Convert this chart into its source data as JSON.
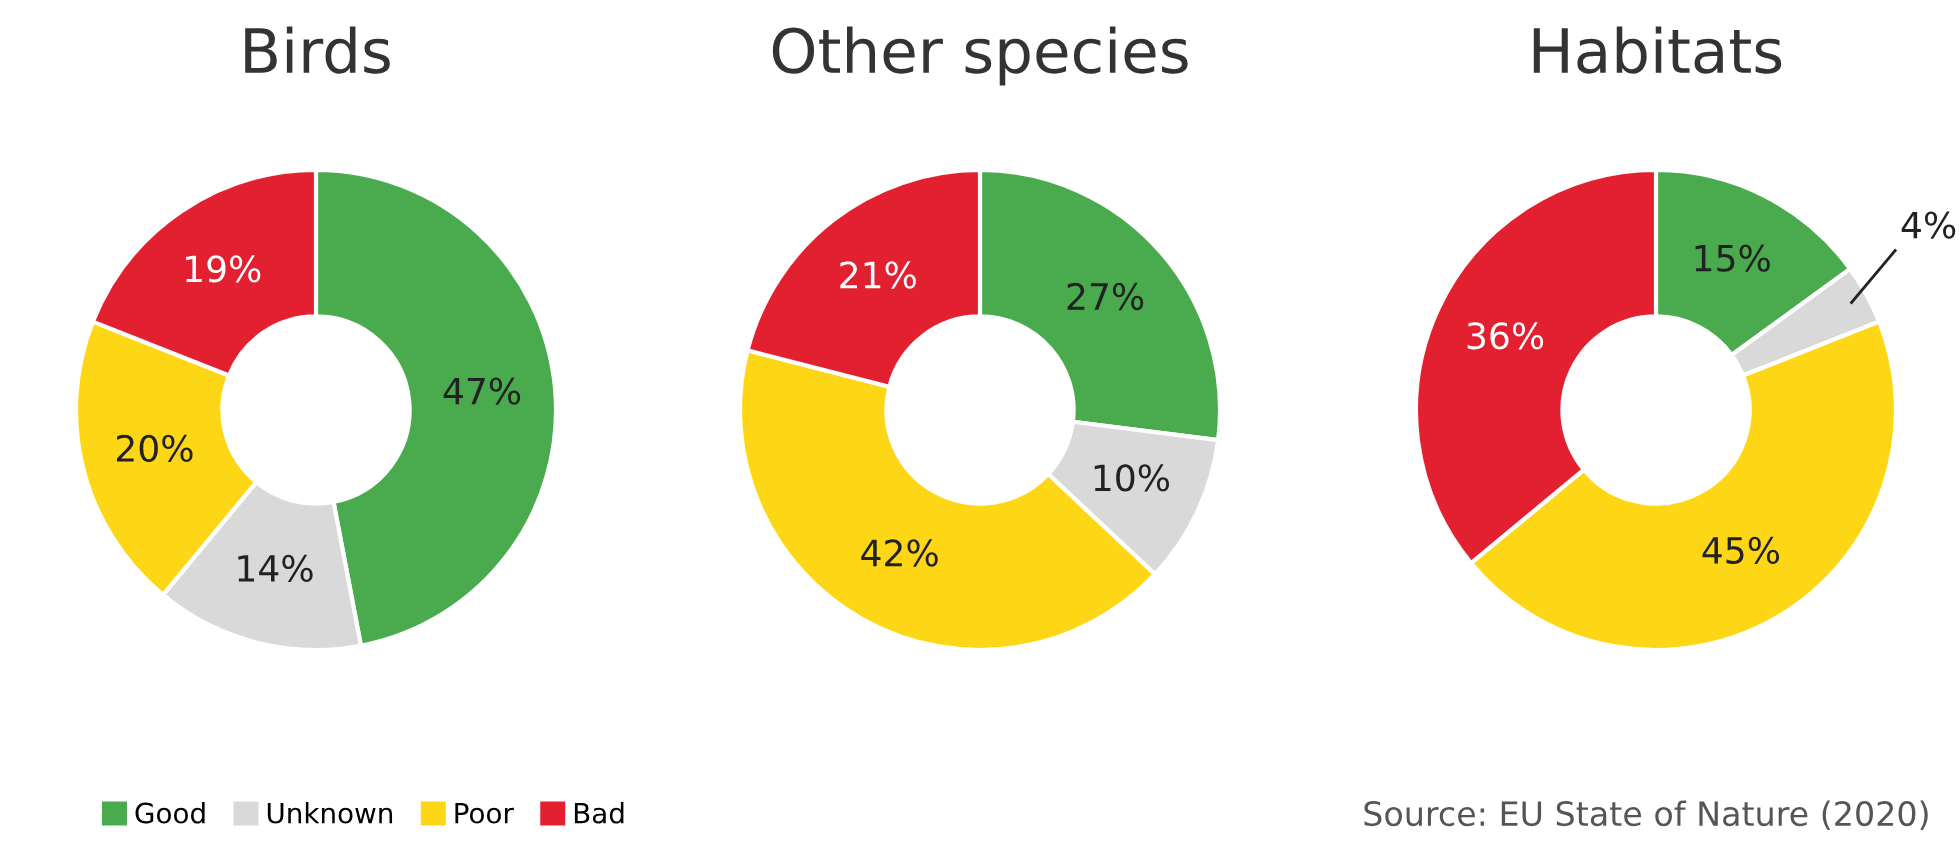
{
  "chart_data": [
    {
      "type": "donut",
      "title": "Birds",
      "categories": [
        "Good",
        "Unknown",
        "Poor",
        "Bad"
      ],
      "values": [
        47,
        14,
        20,
        19
      ],
      "value_labels": [
        "47%",
        "14%",
        "20%",
        "19%"
      ],
      "colors": [
        "#4aab4e",
        "#d9d9d9",
        "#fdd716",
        "#e3202f"
      ],
      "legend": "bottom"
    },
    {
      "type": "donut",
      "title": "Other species",
      "categories": [
        null,
        null,
        null,
        null
      ],
      "values": [
        27,
        10,
        42,
        21
      ],
      "value_labels": [
        "27%",
        "10%",
        "42%",
        "21%"
      ],
      "colors": [
        "#4aab4e",
        "#d9d9d9",
        "#fdd716",
        "#e3202f"
      ]
    },
    {
      "type": "donut",
      "title": "Habitats",
      "categories": [
        null,
        null,
        null,
        null
      ],
      "values": [
        15,
        4,
        45,
        36
      ],
      "value_labels": [
        "15%",
        "4%",
        "45%",
        "36%"
      ],
      "colors": [
        "#4aab4e",
        "#d9d9d9",
        "#fdd716",
        "#e3202f"
      ],
      "annotations": [
        "Source: EU State of Nature (2020)"
      ]
    }
  ]
}
